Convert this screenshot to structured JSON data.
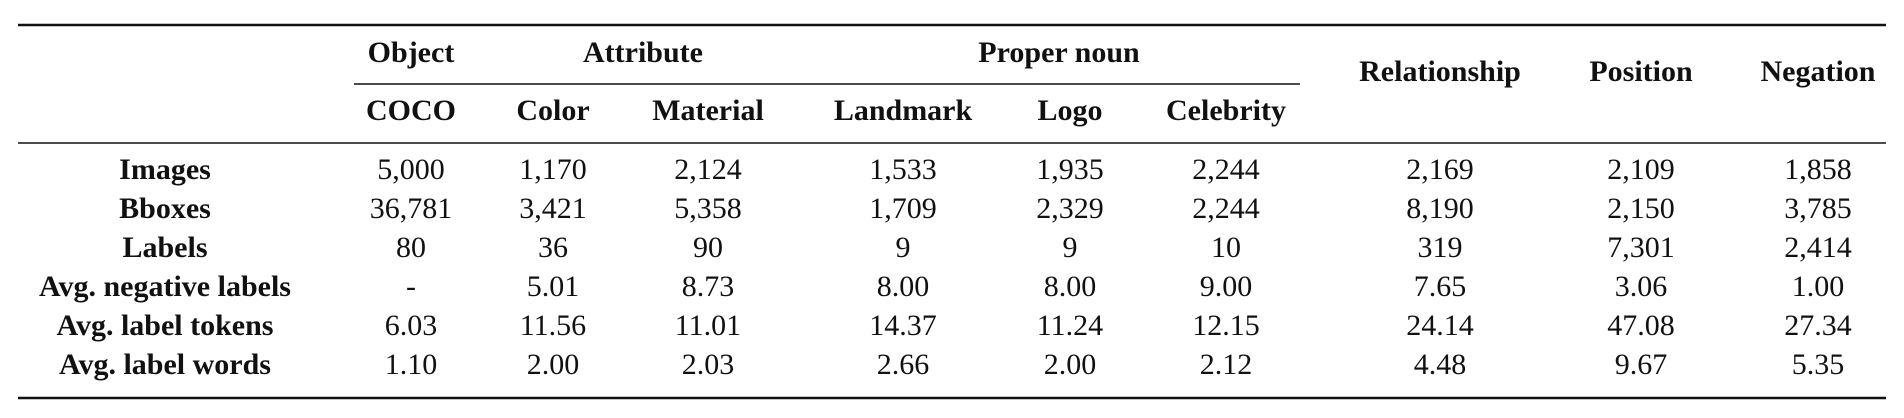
{
  "table": {
    "groups": [
      "Object",
      "Attribute",
      "Proper noun",
      "Relationship",
      "Position",
      "Negation"
    ],
    "subheaders": [
      "COCO",
      "Color",
      "Material",
      "Landmark",
      "Logo",
      "Celebrity"
    ],
    "rows": [
      {
        "label": "Images",
        "cells": [
          "5,000",
          "1,170",
          "2,124",
          "1,533",
          "1,935",
          "2,244",
          "2,169",
          "2,109",
          "1,858"
        ]
      },
      {
        "label": "Bboxes",
        "cells": [
          "36,781",
          "3,421",
          "5,358",
          "1,709",
          "2,329",
          "2,244",
          "8,190",
          "2,150",
          "3,785"
        ]
      },
      {
        "label": "Labels",
        "cells": [
          "80",
          "36",
          "90",
          "9",
          "9",
          "10",
          "319",
          "7,301",
          "2,414"
        ]
      },
      {
        "label": "Avg. negative labels",
        "cells": [
          "-",
          "5.01",
          "8.73",
          "8.00",
          "8.00",
          "9.00",
          "7.65",
          "3.06",
          "1.00"
        ]
      },
      {
        "label": "Avg. label tokens",
        "cells": [
          "6.03",
          "11.56",
          "11.01",
          "14.37",
          "11.24",
          "12.15",
          "24.14",
          "47.08",
          "27.34"
        ]
      },
      {
        "label": "Avg. label words",
        "cells": [
          "1.10",
          "2.00",
          "2.03",
          "2.66",
          "2.00",
          "2.12",
          "4.48",
          "9.67",
          "5.35"
        ]
      }
    ]
  }
}
